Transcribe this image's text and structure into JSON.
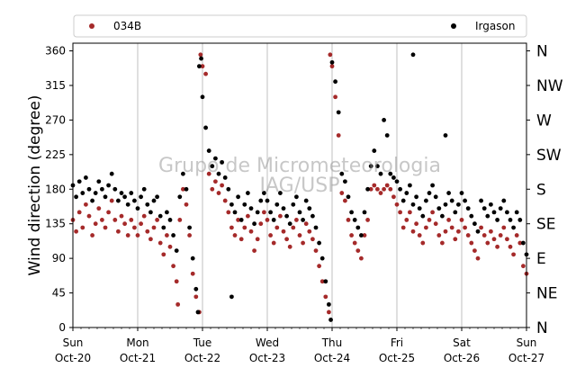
{
  "chart_data": {
    "type": "scatter",
    "ylabel": "Wind direction (degree)",
    "ylim": [
      0,
      370
    ],
    "yticks": [
      0,
      45,
      90,
      135,
      180,
      225,
      270,
      315,
      360
    ],
    "right_ticks": [
      {
        "value": 0,
        "label": "N"
      },
      {
        "value": 45,
        "label": "NE"
      },
      {
        "value": 90,
        "label": "E"
      },
      {
        "value": 135,
        "label": "SE"
      },
      {
        "value": 180,
        "label": "S"
      },
      {
        "value": 225,
        "label": "SW"
      },
      {
        "value": 270,
        "label": "W"
      },
      {
        "value": 315,
        "label": "NW"
      },
      {
        "value": 360,
        "label": "N"
      }
    ],
    "x_range": [
      "2019-10-20",
      "2019-10-27"
    ],
    "x_ticks": [
      {
        "day": "Sun",
        "date": "Oct-20"
      },
      {
        "day": "Mon",
        "date": "Oct-21"
      },
      {
        "day": "Tue",
        "date": "Oct-22"
      },
      {
        "day": "Wed",
        "date": "Oct-23"
      },
      {
        "day": "Thu",
        "date": "Oct-24"
      },
      {
        "day": "Fri",
        "date": "Oct-25"
      },
      {
        "day": "Sat",
        "date": "Oct-26"
      },
      {
        "day": "Sun",
        "date": "Oct-27"
      }
    ],
    "grid": "vertical at day ticks",
    "legend_placement": "top, above plot",
    "watermark_lines": [
      "Grupo de Micrometeorologia",
      "IAG/USP"
    ],
    "series": [
      {
        "name": "034B",
        "color": "#a52a2a",
        "points": [
          [
            0.0,
            140
          ],
          [
            0.05,
            125
          ],
          [
            0.1,
            150
          ],
          [
            0.15,
            130
          ],
          [
            0.2,
            160
          ],
          [
            0.25,
            145
          ],
          [
            0.3,
            120
          ],
          [
            0.35,
            135
          ],
          [
            0.4,
            155
          ],
          [
            0.45,
            140
          ],
          [
            0.5,
            130
          ],
          [
            0.55,
            150
          ],
          [
            0.6,
            165
          ],
          [
            0.65,
            140
          ],
          [
            0.7,
            125
          ],
          [
            0.75,
            145
          ],
          [
            0.8,
            135
          ],
          [
            0.85,
            120
          ],
          [
            0.9,
            140
          ],
          [
            0.95,
            130
          ],
          [
            1.0,
            120
          ],
          [
            1.05,
            135
          ],
          [
            1.1,
            145
          ],
          [
            1.15,
            125
          ],
          [
            1.2,
            115
          ],
          [
            1.25,
            130
          ],
          [
            1.3,
            140
          ],
          [
            1.35,
            110
          ],
          [
            1.4,
            95
          ],
          [
            1.45,
            120
          ],
          [
            1.5,
            105
          ],
          [
            1.55,
            80
          ],
          [
            1.6,
            60
          ],
          [
            1.62,
            30
          ],
          [
            1.65,
            140
          ],
          [
            1.7,
            180
          ],
          [
            1.75,
            160
          ],
          [
            1.8,
            120
          ],
          [
            1.85,
            70
          ],
          [
            1.9,
            40
          ],
          [
            1.95,
            20
          ],
          [
            1.97,
            355
          ],
          [
            2.0,
            340
          ],
          [
            2.05,
            330
          ],
          [
            2.1,
            200
          ],
          [
            2.15,
            180
          ],
          [
            2.2,
            190
          ],
          [
            2.25,
            175
          ],
          [
            2.3,
            185
          ],
          [
            2.35,
            165
          ],
          [
            2.4,
            150
          ],
          [
            2.45,
            130
          ],
          [
            2.5,
            120
          ],
          [
            2.55,
            140
          ],
          [
            2.6,
            115
          ],
          [
            2.65,
            130
          ],
          [
            2.7,
            145
          ],
          [
            2.75,
            125
          ],
          [
            2.8,
            100
          ],
          [
            2.85,
            115
          ],
          [
            2.9,
            135
          ],
          [
            2.95,
            150
          ],
          [
            3.0,
            140
          ],
          [
            3.05,
            120
          ],
          [
            3.1,
            110
          ],
          [
            3.15,
            130
          ],
          [
            3.2,
            145
          ],
          [
            3.25,
            125
          ],
          [
            3.3,
            115
          ],
          [
            3.35,
            105
          ],
          [
            3.4,
            130
          ],
          [
            3.45,
            140
          ],
          [
            3.5,
            120
          ],
          [
            3.55,
            110
          ],
          [
            3.6,
            135
          ],
          [
            3.65,
            125
          ],
          [
            3.7,
            115
          ],
          [
            3.75,
            100
          ],
          [
            3.8,
            80
          ],
          [
            3.85,
            60
          ],
          [
            3.9,
            40
          ],
          [
            3.95,
            20
          ],
          [
            3.97,
            355
          ],
          [
            4.0,
            340
          ],
          [
            4.05,
            300
          ],
          [
            4.1,
            250
          ],
          [
            4.15,
            175
          ],
          [
            4.2,
            165
          ],
          [
            4.25,
            140
          ],
          [
            4.3,
            120
          ],
          [
            4.35,
            110
          ],
          [
            4.4,
            100
          ],
          [
            4.45,
            90
          ],
          [
            4.5,
            120
          ],
          [
            4.55,
            140
          ],
          [
            4.6,
            180
          ],
          [
            4.65,
            185
          ],
          [
            4.7,
            180
          ],
          [
            4.75,
            175
          ],
          [
            4.8,
            180
          ],
          [
            4.85,
            185
          ],
          [
            4.9,
            180
          ],
          [
            4.95,
            170
          ],
          [
            5.0,
            160
          ],
          [
            5.05,
            150
          ],
          [
            5.1,
            130
          ],
          [
            5.15,
            140
          ],
          [
            5.2,
            150
          ],
          [
            5.25,
            125
          ],
          [
            5.3,
            135
          ],
          [
            5.35,
            120
          ],
          [
            5.4,
            110
          ],
          [
            5.45,
            130
          ],
          [
            5.5,
            140
          ],
          [
            5.55,
            150
          ],
          [
            5.6,
            135
          ],
          [
            5.65,
            120
          ],
          [
            5.7,
            110
          ],
          [
            5.75,
            125
          ],
          [
            5.8,
            140
          ],
          [
            5.85,
            130
          ],
          [
            5.9,
            115
          ],
          [
            5.95,
            125
          ],
          [
            6.0,
            140
          ],
          [
            6.05,
            130
          ],
          [
            6.1,
            120
          ],
          [
            6.15,
            110
          ],
          [
            6.2,
            100
          ],
          [
            6.25,
            90
          ],
          [
            6.3,
            130
          ],
          [
            6.35,
            120
          ],
          [
            6.4,
            110
          ],
          [
            6.45,
            125
          ],
          [
            6.5,
            115
          ],
          [
            6.55,
            105
          ],
          [
            6.6,
            120
          ],
          [
            6.65,
            130
          ],
          [
            6.7,
            115
          ],
          [
            6.75,
            105
          ],
          [
            6.8,
            95
          ],
          [
            6.85,
            120
          ],
          [
            6.9,
            110
          ],
          [
            6.95,
            80
          ],
          [
            7.0,
            70
          ]
        ]
      },
      {
        "name": "Irgason",
        "color": "#000000",
        "points": [
          [
            0.0,
            185
          ],
          [
            0.05,
            170
          ],
          [
            0.1,
            190
          ],
          [
            0.15,
            175
          ],
          [
            0.2,
            195
          ],
          [
            0.25,
            180
          ],
          [
            0.3,
            165
          ],
          [
            0.35,
            175
          ],
          [
            0.4,
            190
          ],
          [
            0.45,
            180
          ],
          [
            0.5,
            170
          ],
          [
            0.55,
            185
          ],
          [
            0.6,
            200
          ],
          [
            0.65,
            180
          ],
          [
            0.7,
            165
          ],
          [
            0.75,
            175
          ],
          [
            0.8,
            170
          ],
          [
            0.85,
            160
          ],
          [
            0.9,
            175
          ],
          [
            0.95,
            165
          ],
          [
            1.0,
            155
          ],
          [
            1.05,
            170
          ],
          [
            1.1,
            180
          ],
          [
            1.15,
            160
          ],
          [
            1.2,
            150
          ],
          [
            1.25,
            165
          ],
          [
            1.3,
            170
          ],
          [
            1.35,
            145
          ],
          [
            1.4,
            130
          ],
          [
            1.45,
            150
          ],
          [
            1.5,
            140
          ],
          [
            1.55,
            120
          ],
          [
            1.6,
            100
          ],
          [
            1.65,
            170
          ],
          [
            1.7,
            200
          ],
          [
            1.75,
            180
          ],
          [
            1.8,
            130
          ],
          [
            1.85,
            90
          ],
          [
            1.9,
            50
          ],
          [
            1.93,
            20
          ],
          [
            1.95,
            340
          ],
          [
            1.98,
            350
          ],
          [
            2.0,
            300
          ],
          [
            2.05,
            260
          ],
          [
            2.1,
            230
          ],
          [
            2.15,
            210
          ],
          [
            2.2,
            220
          ],
          [
            2.25,
            200
          ],
          [
            2.3,
            215
          ],
          [
            2.35,
            195
          ],
          [
            2.4,
            180
          ],
          [
            2.45,
            160
          ],
          [
            2.5,
            150
          ],
          [
            2.55,
            170
          ],
          [
            2.6,
            140
          ],
          [
            2.65,
            160
          ],
          [
            2.7,
            175
          ],
          [
            2.75,
            155
          ],
          [
            2.8,
            135
          ],
          [
            2.85,
            150
          ],
          [
            2.9,
            165
          ],
          [
            2.95,
            175
          ],
          [
            3.0,
            165
          ],
          [
            3.05,
            150
          ],
          [
            3.1,
            140
          ],
          [
            3.15,
            160
          ],
          [
            3.2,
            175
          ],
          [
            3.25,
            155
          ],
          [
            3.3,
            145
          ],
          [
            3.35,
            135
          ],
          [
            3.4,
            160
          ],
          [
            3.45,
            170
          ],
          [
            3.5,
            150
          ],
          [
            3.55,
            140
          ],
          [
            3.6,
            165
          ],
          [
            3.65,
            155
          ],
          [
            3.7,
            145
          ],
          [
            3.75,
            130
          ],
          [
            3.8,
            110
          ],
          [
            3.85,
            90
          ],
          [
            3.9,
            60
          ],
          [
            3.95,
            30
          ],
          [
            3.98,
            10
          ],
          [
            4.0,
            345
          ],
          [
            4.05,
            320
          ],
          [
            4.1,
            280
          ],
          [
            4.15,
            200
          ],
          [
            4.2,
            190
          ],
          [
            4.25,
            170
          ],
          [
            4.3,
            150
          ],
          [
            4.35,
            140
          ],
          [
            4.4,
            130
          ],
          [
            4.45,
            120
          ],
          [
            4.5,
            150
          ],
          [
            4.55,
            180
          ],
          [
            4.6,
            210
          ],
          [
            4.65,
            230
          ],
          [
            4.7,
            210
          ],
          [
            4.75,
            200
          ],
          [
            4.8,
            270
          ],
          [
            4.85,
            250
          ],
          [
            4.9,
            200
          ],
          [
            4.95,
            195
          ],
          [
            5.0,
            190
          ],
          [
            5.05,
            180
          ],
          [
            5.1,
            165
          ],
          [
            5.15,
            175
          ],
          [
            5.2,
            185
          ],
          [
            5.25,
            160
          ],
          [
            5.3,
            170
          ],
          [
            5.35,
            155
          ],
          [
            5.4,
            145
          ],
          [
            5.45,
            165
          ],
          [
            5.5,
            175
          ],
          [
            5.55,
            185
          ],
          [
            5.6,
            170
          ],
          [
            5.65,
            155
          ],
          [
            5.7,
            145
          ],
          [
            5.75,
            160
          ],
          [
            5.8,
            175
          ],
          [
            5.85,
            165
          ],
          [
            5.9,
            150
          ],
          [
            5.95,
            160
          ],
          [
            6.0,
            175
          ],
          [
            6.05,
            165
          ],
          [
            6.1,
            155
          ],
          [
            6.15,
            145
          ],
          [
            6.2,
            135
          ],
          [
            6.25,
            125
          ],
          [
            6.3,
            165
          ],
          [
            6.35,
            155
          ],
          [
            6.4,
            145
          ],
          [
            6.45,
            160
          ],
          [
            6.5,
            150
          ],
          [
            6.55,
            140
          ],
          [
            6.6,
            155
          ],
          [
            6.65,
            165
          ],
          [
            6.7,
            150
          ],
          [
            6.75,
            140
          ],
          [
            6.8,
            130
          ],
          [
            6.85,
            150
          ],
          [
            6.9,
            140
          ],
          [
            6.95,
            110
          ],
          [
            7.0,
            95
          ],
          [
            2.45,
            40
          ],
          [
            5.25,
            355
          ],
          [
            5.75,
            250
          ]
        ]
      }
    ]
  }
}
